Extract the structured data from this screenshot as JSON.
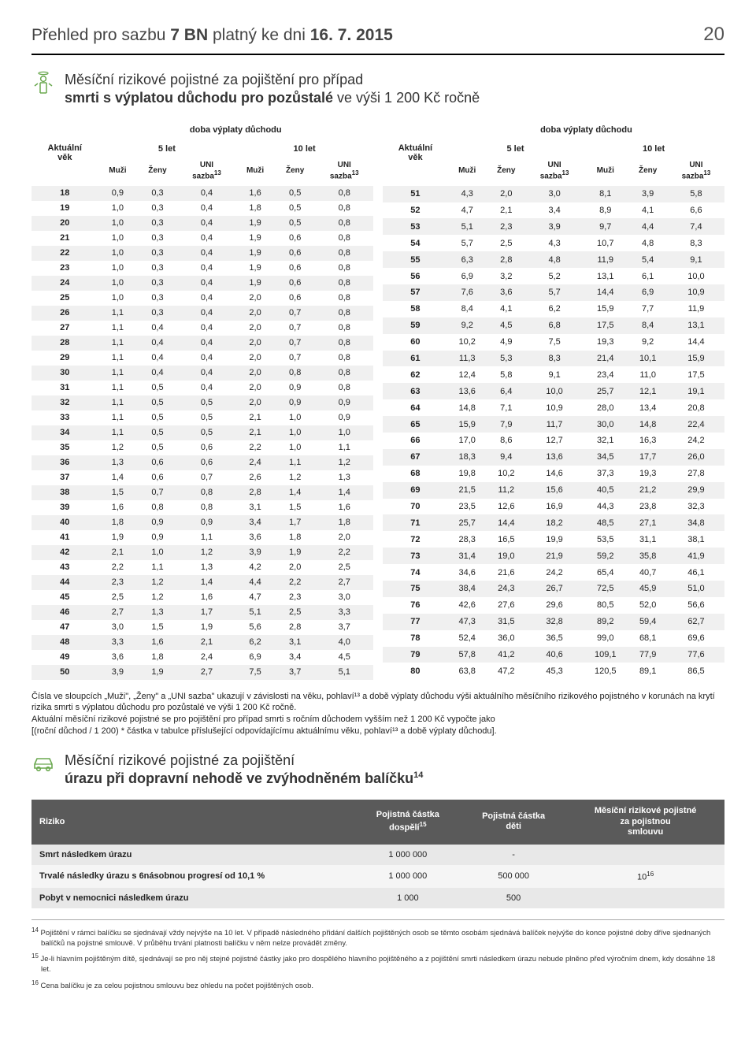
{
  "header": {
    "title_prefix": "Přehled pro sazbu ",
    "tariff": "7 BN",
    "title_mid": " platný ke dni ",
    "date": "16. 7. 2015",
    "page": "20"
  },
  "section1": {
    "line1": "Měsíční rizikové pojistné za pojištění pro případ",
    "line2a": "smrti s výplatou důchodu pro pozůstalé",
    "line2b": " ve výši 1 200 Kč ročně"
  },
  "table_headers": {
    "doba": "doba výplaty důchodu",
    "aktualni": "Aktuální věk",
    "let5": "5 let",
    "let10": "10 let",
    "muzi": "Muži",
    "zeny": "Ženy",
    "uni": "UNI sazba",
    "uni_sup": "13"
  },
  "left_rows": [
    [
      18,
      "0,9",
      "0,3",
      "0,4",
      "1,6",
      "0,5",
      "0,8"
    ],
    [
      19,
      "1,0",
      "0,3",
      "0,4",
      "1,8",
      "0,5",
      "0,8"
    ],
    [
      20,
      "1,0",
      "0,3",
      "0,4",
      "1,9",
      "0,5",
      "0,8"
    ],
    [
      21,
      "1,0",
      "0,3",
      "0,4",
      "1,9",
      "0,6",
      "0,8"
    ],
    [
      22,
      "1,0",
      "0,3",
      "0,4",
      "1,9",
      "0,6",
      "0,8"
    ],
    [
      23,
      "1,0",
      "0,3",
      "0,4",
      "1,9",
      "0,6",
      "0,8"
    ],
    [
      24,
      "1,0",
      "0,3",
      "0,4",
      "1,9",
      "0,6",
      "0,8"
    ],
    [
      25,
      "1,0",
      "0,3",
      "0,4",
      "2,0",
      "0,6",
      "0,8"
    ],
    [
      26,
      "1,1",
      "0,3",
      "0,4",
      "2,0",
      "0,7",
      "0,8"
    ],
    [
      27,
      "1,1",
      "0,4",
      "0,4",
      "2,0",
      "0,7",
      "0,8"
    ],
    [
      28,
      "1,1",
      "0,4",
      "0,4",
      "2,0",
      "0,7",
      "0,8"
    ],
    [
      29,
      "1,1",
      "0,4",
      "0,4",
      "2,0",
      "0,7",
      "0,8"
    ],
    [
      30,
      "1,1",
      "0,4",
      "0,4",
      "2,0",
      "0,8",
      "0,8"
    ],
    [
      31,
      "1,1",
      "0,5",
      "0,4",
      "2,0",
      "0,9",
      "0,8"
    ],
    [
      32,
      "1,1",
      "0,5",
      "0,5",
      "2,0",
      "0,9",
      "0,9"
    ],
    [
      33,
      "1,1",
      "0,5",
      "0,5",
      "2,1",
      "1,0",
      "0,9"
    ],
    [
      34,
      "1,1",
      "0,5",
      "0,5",
      "2,1",
      "1,0",
      "1,0"
    ],
    [
      35,
      "1,2",
      "0,5",
      "0,6",
      "2,2",
      "1,0",
      "1,1"
    ],
    [
      36,
      "1,3",
      "0,6",
      "0,6",
      "2,4",
      "1,1",
      "1,2"
    ],
    [
      37,
      "1,4",
      "0,6",
      "0,7",
      "2,6",
      "1,2",
      "1,3"
    ],
    [
      38,
      "1,5",
      "0,7",
      "0,8",
      "2,8",
      "1,4",
      "1,4"
    ],
    [
      39,
      "1,6",
      "0,8",
      "0,8",
      "3,1",
      "1,5",
      "1,6"
    ],
    [
      40,
      "1,8",
      "0,9",
      "0,9",
      "3,4",
      "1,7",
      "1,8"
    ],
    [
      41,
      "1,9",
      "0,9",
      "1,1",
      "3,6",
      "1,8",
      "2,0"
    ],
    [
      42,
      "2,1",
      "1,0",
      "1,2",
      "3,9",
      "1,9",
      "2,2"
    ],
    [
      43,
      "2,2",
      "1,1",
      "1,3",
      "4,2",
      "2,0",
      "2,5"
    ],
    [
      44,
      "2,3",
      "1,2",
      "1,4",
      "4,4",
      "2,2",
      "2,7"
    ],
    [
      45,
      "2,5",
      "1,2",
      "1,6",
      "4,7",
      "2,3",
      "3,0"
    ],
    [
      46,
      "2,7",
      "1,3",
      "1,7",
      "5,1",
      "2,5",
      "3,3"
    ],
    [
      47,
      "3,0",
      "1,5",
      "1,9",
      "5,6",
      "2,8",
      "3,7"
    ],
    [
      48,
      "3,3",
      "1,6",
      "2,1",
      "6,2",
      "3,1",
      "4,0"
    ],
    [
      49,
      "3,6",
      "1,8",
      "2,4",
      "6,9",
      "3,4",
      "4,5"
    ],
    [
      50,
      "3,9",
      "1,9",
      "2,7",
      "7,5",
      "3,7",
      "5,1"
    ]
  ],
  "right_rows": [
    [
      51,
      "4,3",
      "2,0",
      "3,0",
      "8,1",
      "3,9",
      "5,8"
    ],
    [
      52,
      "4,7",
      "2,1",
      "3,4",
      "8,9",
      "4,1",
      "6,6"
    ],
    [
      53,
      "5,1",
      "2,3",
      "3,9",
      "9,7",
      "4,4",
      "7,4"
    ],
    [
      54,
      "5,7",
      "2,5",
      "4,3",
      "10,7",
      "4,8",
      "8,3"
    ],
    [
      55,
      "6,3",
      "2,8",
      "4,8",
      "11,9",
      "5,4",
      "9,1"
    ],
    [
      56,
      "6,9",
      "3,2",
      "5,2",
      "13,1",
      "6,1",
      "10,0"
    ],
    [
      57,
      "7,6",
      "3,6",
      "5,7",
      "14,4",
      "6,9",
      "10,9"
    ],
    [
      58,
      "8,4",
      "4,1",
      "6,2",
      "15,9",
      "7,7",
      "11,9"
    ],
    [
      59,
      "9,2",
      "4,5",
      "6,8",
      "17,5",
      "8,4",
      "13,1"
    ],
    [
      60,
      "10,2",
      "4,9",
      "7,5",
      "19,3",
      "9,2",
      "14,4"
    ],
    [
      61,
      "11,3",
      "5,3",
      "8,3",
      "21,4",
      "10,1",
      "15,9"
    ],
    [
      62,
      "12,4",
      "5,8",
      "9,1",
      "23,4",
      "11,0",
      "17,5"
    ],
    [
      63,
      "13,6",
      "6,4",
      "10,0",
      "25,7",
      "12,1",
      "19,1"
    ],
    [
      64,
      "14,8",
      "7,1",
      "10,9",
      "28,0",
      "13,4",
      "20,8"
    ],
    [
      65,
      "15,9",
      "7,9",
      "11,7",
      "30,0",
      "14,8",
      "22,4"
    ],
    [
      66,
      "17,0",
      "8,6",
      "12,7",
      "32,1",
      "16,3",
      "24,2"
    ],
    [
      67,
      "18,3",
      "9,4",
      "13,6",
      "34,5",
      "17,7",
      "26,0"
    ],
    [
      68,
      "19,8",
      "10,2",
      "14,6",
      "37,3",
      "19,3",
      "27,8"
    ],
    [
      69,
      "21,5",
      "11,2",
      "15,6",
      "40,5",
      "21,2",
      "29,9"
    ],
    [
      70,
      "23,5",
      "12,6",
      "16,9",
      "44,3",
      "23,8",
      "32,3"
    ],
    [
      71,
      "25,7",
      "14,4",
      "18,2",
      "48,5",
      "27,1",
      "34,8"
    ],
    [
      72,
      "28,3",
      "16,5",
      "19,9",
      "53,5",
      "31,1",
      "38,1"
    ],
    [
      73,
      "31,4",
      "19,0",
      "21,9",
      "59,2",
      "35,8",
      "41,9"
    ],
    [
      74,
      "34,6",
      "21,6",
      "24,2",
      "65,4",
      "40,7",
      "46,1"
    ],
    [
      75,
      "38,4",
      "24,3",
      "26,7",
      "72,5",
      "45,9",
      "51,0"
    ],
    [
      76,
      "42,6",
      "27,6",
      "29,6",
      "80,5",
      "52,0",
      "56,6"
    ],
    [
      77,
      "47,3",
      "31,5",
      "32,8",
      "89,2",
      "59,4",
      "62,7"
    ],
    [
      78,
      "52,4",
      "36,0",
      "36,5",
      "99,0",
      "68,1",
      "69,6"
    ],
    [
      79,
      "57,8",
      "41,2",
      "40,6",
      "109,1",
      "77,9",
      "77,6"
    ],
    [
      80,
      "63,8",
      "47,2",
      "45,3",
      "120,5",
      "89,1",
      "86,5"
    ]
  ],
  "note": {
    "l1": "Čísla ve sloupcích „Muži\", „Ženy\" a „UNI sazba\" ukazují v závislosti na věku, pohlaví¹³ a době výplaty důchodu výši aktuálního měsíčního rizikového pojistného v korunách na krytí rizika smrti s výplatou důchodu pro pozůstalé ve výši 1 200 Kč ročně.",
    "l2": "Aktuální měsíční rizikové pojistné se pro pojištění pro případ smrti s ročním důchodem vyšším než 1 200 Kč vypočte jako",
    "l3": "[(roční důchod / 1 200) * částka v tabulce příslušející odpovídajícímu aktuálnímu věku, pohlaví¹³ a době výplaty důchodu]."
  },
  "section2": {
    "line1": "Měsíční rizikové pojistné za pojištění",
    "line2": "úrazu při dopravní nehodě ve zvýhodněném balíčku",
    "sup": "14"
  },
  "risk_table": {
    "headers": {
      "riziko": "Riziko",
      "dospeli": "Pojistná částka dospělí",
      "dospeli_sup": "15",
      "deti": "Pojistná částka děti",
      "mesicni": "Měsíční rizikové pojistné za pojistnou smlouvu"
    },
    "rows": [
      {
        "riziko": "Smrt následkem úrazu",
        "dosp": "1 000 000",
        "deti": "-",
        "mes": ""
      },
      {
        "riziko": "Trvalé následky úrazu s 6násobnou progresí od 10,1 %",
        "dosp": "1 000 000",
        "deti": "500 000",
        "mes": "10",
        "mes_sup": "16"
      },
      {
        "riziko": "Pobyt v nemocnici následkem úrazu",
        "dosp": "1 000",
        "deti": "500",
        "mes": ""
      }
    ]
  },
  "footnotes": {
    "f14": "Pojištění v rámci balíčku se sjednávají vždy nejvýše na 10 let. V případě následného přidání dalších pojištěných osob se těmto osobám sjednává balíček nejvýše do konce pojistné doby dříve sjednaných balíčků na pojistné smlouvě. V průběhu trvání platnosti balíčku v něm nelze provádět změny.",
    "f15": "Je-li hlavním pojištěným dítě, sjednávají se pro něj stejné pojistné částky jako pro dospělého hlavního pojištěného a z pojištění smrti následkem úrazu nebude plněno před výročním dnem, kdy dosáhne 18 let.",
    "f16": "Cena balíčku je za celou pojistnou smlouvu bez ohledu na počet pojištěných osob."
  }
}
